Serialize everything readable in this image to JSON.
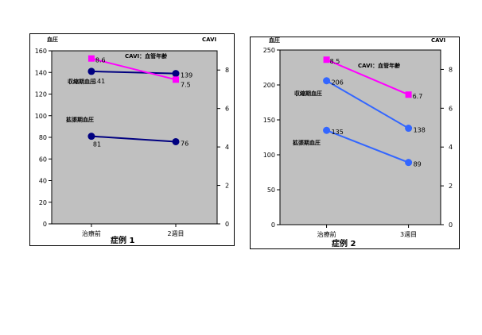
{
  "chart_data": [
    {
      "type": "line",
      "title": "症例 1",
      "left_axis_label": "血圧",
      "right_axis_label": "CAVI",
      "categories": [
        "治療前",
        "2週目"
      ],
      "left_ylim": [
        0,
        160
      ],
      "left_ticks": [
        "0",
        "20",
        "40",
        "60",
        "80",
        "100",
        "120",
        "140",
        "160"
      ],
      "right_ylim": [
        0,
        9
      ],
      "right_ticks": [
        "0",
        "2",
        "4",
        "6",
        "8"
      ],
      "series": [
        {
          "name": "収縮期血圧",
          "axis": "left",
          "values": [
            141,
            139
          ],
          "labels": [
            "141",
            "139"
          ],
          "color": "#000080",
          "marker": "circle"
        },
        {
          "name": "拡張期血圧",
          "axis": "left",
          "values": [
            81,
            76
          ],
          "labels": [
            "81",
            "76"
          ],
          "color": "#000080",
          "marker": "circle"
        },
        {
          "name": "CAVI：血管年齢",
          "axis": "right",
          "values": [
            8.6,
            7.5
          ],
          "labels": [
            "8.6",
            "7.5"
          ],
          "color": "#ff00ff",
          "marker": "square"
        }
      ],
      "grid": false,
      "plot_bg": "#c0c0c0"
    },
    {
      "type": "line",
      "title": "症例 2",
      "left_axis_label": "血圧",
      "right_axis_label": "CAVI",
      "categories": [
        "治療前",
        "3週目"
      ],
      "left_ylim": [
        0,
        250
      ],
      "left_ticks": [
        "0",
        "50",
        "100",
        "150",
        "200",
        "250"
      ],
      "right_ylim": [
        0,
        9
      ],
      "right_ticks": [
        "0",
        "2",
        "4",
        "6",
        "8"
      ],
      "series": [
        {
          "name": "収縮期血圧",
          "axis": "left",
          "values": [
            206,
            138
          ],
          "labels": [
            "206",
            "138"
          ],
          "color": "#3366ff",
          "marker": "circle"
        },
        {
          "name": "拡張期血圧",
          "axis": "left",
          "values": [
            135,
            89
          ],
          "labels": [
            "135",
            "89"
          ],
          "color": "#3366ff",
          "marker": "circle"
        },
        {
          "name": "CAVI：血管年齢",
          "axis": "right",
          "values": [
            8.5,
            6.7
          ],
          "labels": [
            "8.5",
            "6.7"
          ],
          "color": "#ff00ff",
          "marker": "square"
        }
      ],
      "grid": false,
      "plot_bg": "#c0c0c0"
    }
  ]
}
